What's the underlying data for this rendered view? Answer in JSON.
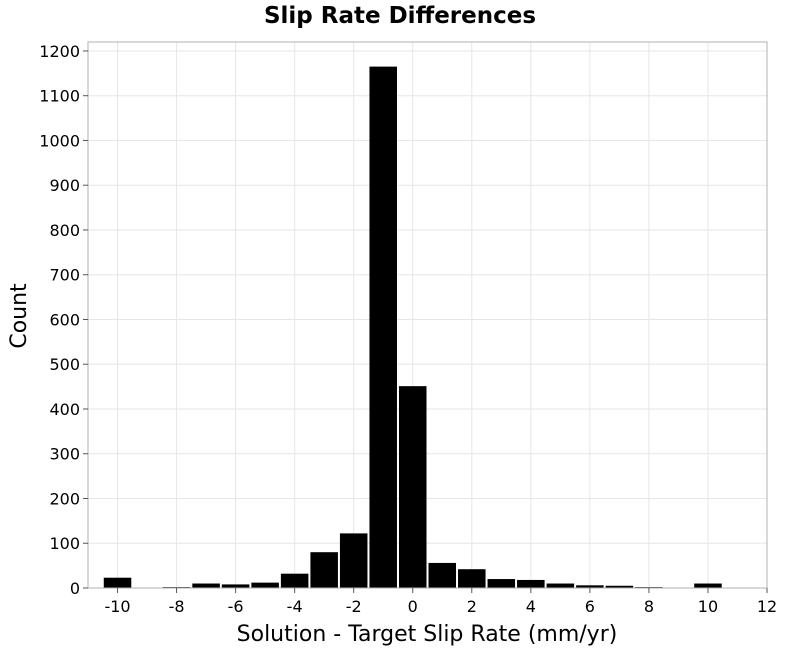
{
  "chart_data": {
    "type": "bar",
    "title": "Slip Rate Differences",
    "xlabel": "Solution - Target Slip Rate (mm/yr)",
    "ylabel": "Count",
    "xlim": [
      -11,
      12
    ],
    "ylim": [
      0,
      1220
    ],
    "xticks": [
      -10,
      -8,
      -6,
      -4,
      -2,
      0,
      2,
      4,
      6,
      8,
      10,
      12
    ],
    "yticks": [
      0,
      100,
      200,
      300,
      400,
      500,
      600,
      700,
      800,
      900,
      1000,
      1100,
      1200
    ],
    "bin_width": 1,
    "x": [
      -10,
      -9,
      -8,
      -7,
      -6,
      -5,
      -4,
      -3,
      -2,
      -1,
      0,
      1,
      2,
      3,
      4,
      5,
      6,
      7,
      8,
      9,
      10,
      11
    ],
    "values": [
      23,
      0,
      2,
      10,
      8,
      12,
      32,
      80,
      122,
      1165,
      451,
      56,
      42,
      20,
      18,
      10,
      6,
      5,
      2,
      1,
      10,
      0
    ],
    "grid": true,
    "bar_color": "#000000"
  }
}
